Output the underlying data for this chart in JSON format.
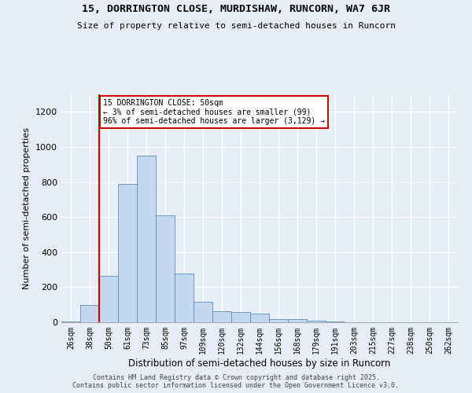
{
  "title_line1": "15, DORRINGTON CLOSE, MURDISHAW, RUNCORN, WA7 6JR",
  "title_line2": "Size of property relative to semi-detached houses in Runcorn",
  "xlabel": "Distribution of semi-detached houses by size in Runcorn",
  "ylabel": "Number of semi-detached properties",
  "categories": [
    "26sqm",
    "38sqm",
    "50sqm",
    "61sqm",
    "73sqm",
    "85sqm",
    "97sqm",
    "109sqm",
    "120sqm",
    "132sqm",
    "144sqm",
    "156sqm",
    "168sqm",
    "179sqm",
    "191sqm",
    "203sqm",
    "215sqm",
    "227sqm",
    "238sqm",
    "250sqm",
    "262sqm"
  ],
  "values": [
    5,
    100,
    265,
    790,
    950,
    610,
    280,
    115,
    65,
    60,
    50,
    20,
    20,
    10,
    5,
    2,
    2,
    2,
    0,
    0,
    2
  ],
  "bar_color": "#c5d8f0",
  "bar_edge_color": "#5a8fc3",
  "highlight_bar_index": 2,
  "vline_x_index": 2,
  "annotation_text": "15 DORRINGTON CLOSE: 50sqm\n← 3% of semi-detached houses are smaller (99)\n96% of semi-detached houses are larger (3,129) →",
  "annotation_box_color": "#ffffff",
  "annotation_box_edge_color": "#cc0000",
  "vline_color": "#cc0000",
  "ylim": [
    0,
    1300
  ],
  "yticks": [
    0,
    200,
    400,
    600,
    800,
    1000,
    1200
  ],
  "footer_line1": "Contains HM Land Registry data © Crown copyright and database right 2025.",
  "footer_line2": "Contains public sector information licensed under the Open Government Licence v3.0.",
  "background_color": "#e8eef8",
  "fig_background_color": "#e8eef8"
}
